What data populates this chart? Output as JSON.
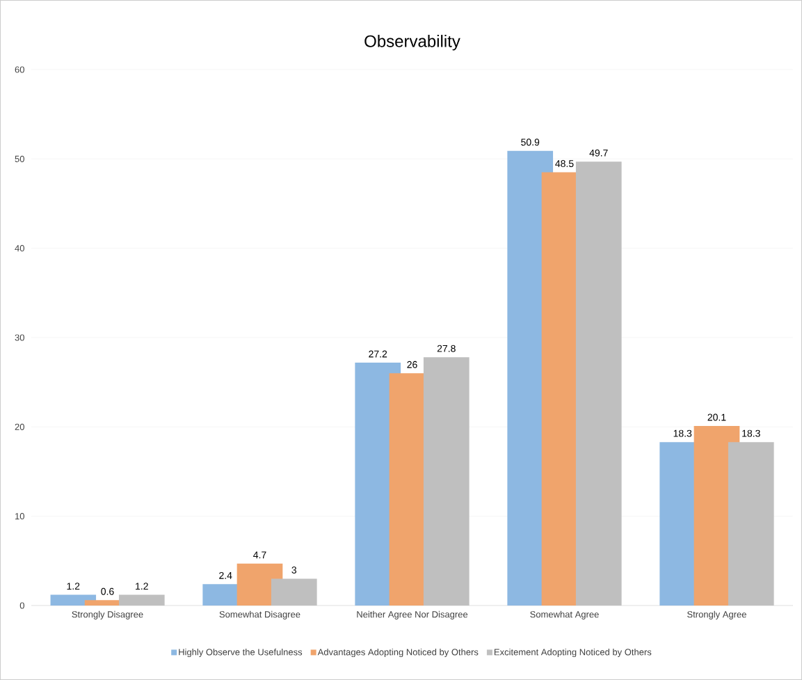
{
  "chart_data": {
    "type": "bar",
    "title": "Observability",
    "categories": [
      "Strongly  Disagree",
      "Somewhat  Disagree",
      "Neither  Agree  Nor Disagree",
      "Somewhat  Agree",
      "Strongly  Agree"
    ],
    "series": [
      {
        "name": "Highly Observe the Usefulness",
        "color": "#8db8e2",
        "values": [
          1.2,
          2.4,
          27.2,
          50.9,
          18.3
        ]
      },
      {
        "name": "Advantages Adopting Noticed by Others",
        "color": "#f0a46c",
        "values": [
          0.6,
          4.7,
          26,
          48.5,
          20.1
        ]
      },
      {
        "name": "Excitement Adopting Noticed by Others",
        "color": "#bfbfbf",
        "values": [
          1.2,
          3,
          27.8,
          49.7,
          18.3
        ]
      }
    ],
    "ylim": [
      0,
      60
    ],
    "yticks": [
      0,
      10,
      20,
      30,
      40,
      50,
      60
    ],
    "grid": "y",
    "legend": "bottom",
    "data_labels": true
  }
}
